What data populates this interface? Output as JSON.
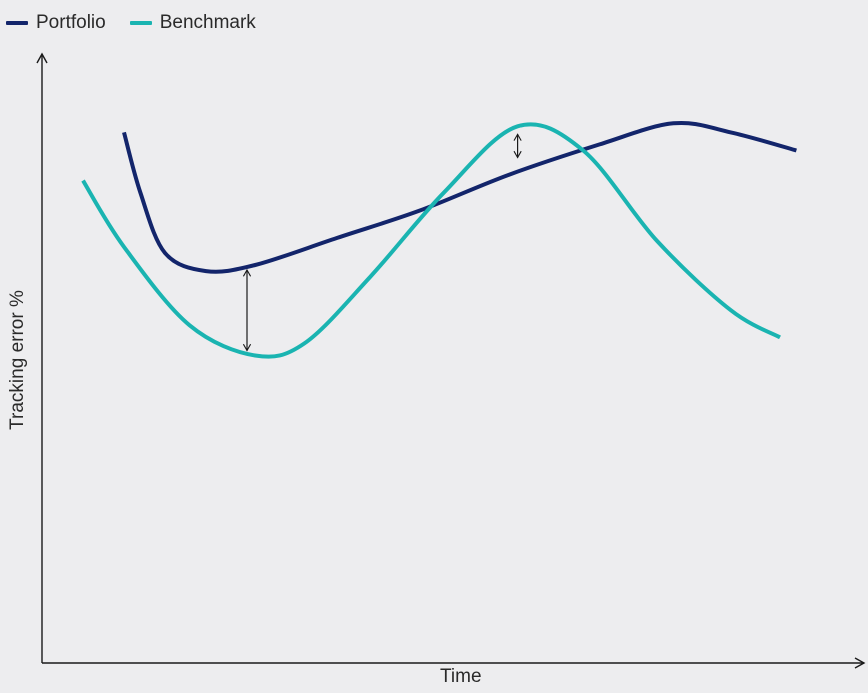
{
  "chart_data": {
    "type": "line",
    "title": "",
    "xlabel": "Time",
    "ylabel": "Tracking error %",
    "xlim": [
      0,
      10
    ],
    "ylim": [
      0,
      10
    ],
    "grid": false,
    "legend_position": "top-left",
    "series": [
      {
        "name": "Portfolio",
        "color": "#13256b",
        "points": [
          [
            1.0,
            8.8
          ],
          [
            1.2,
            7.8
          ],
          [
            1.5,
            6.8
          ],
          [
            2.0,
            6.5
          ],
          [
            2.6,
            6.6
          ],
          [
            3.6,
            7.05
          ],
          [
            4.6,
            7.5
          ],
          [
            5.7,
            8.1
          ],
          [
            6.8,
            8.6
          ],
          [
            7.7,
            8.95
          ],
          [
            8.4,
            8.8
          ],
          [
            9.2,
            8.5
          ]
        ]
      },
      {
        "name": "Benchmark",
        "color": "#1ab4b1",
        "points": [
          [
            0.5,
            8.0
          ],
          [
            1.0,
            6.9
          ],
          [
            1.8,
            5.6
          ],
          [
            2.6,
            5.1
          ],
          [
            3.2,
            5.3
          ],
          [
            4.0,
            6.4
          ],
          [
            4.9,
            7.8
          ],
          [
            5.8,
            8.9
          ],
          [
            6.6,
            8.5
          ],
          [
            7.5,
            7.0
          ],
          [
            8.4,
            5.85
          ],
          [
            9.0,
            5.4
          ]
        ]
      }
    ],
    "annotations": [
      {
        "type": "double-arrow",
        "x": 2.5,
        "y_from": 6.6,
        "y_to": 5.1
      },
      {
        "type": "double-arrow",
        "x": 5.8,
        "y_from": 8.85,
        "y_to": 8.3
      }
    ]
  }
}
